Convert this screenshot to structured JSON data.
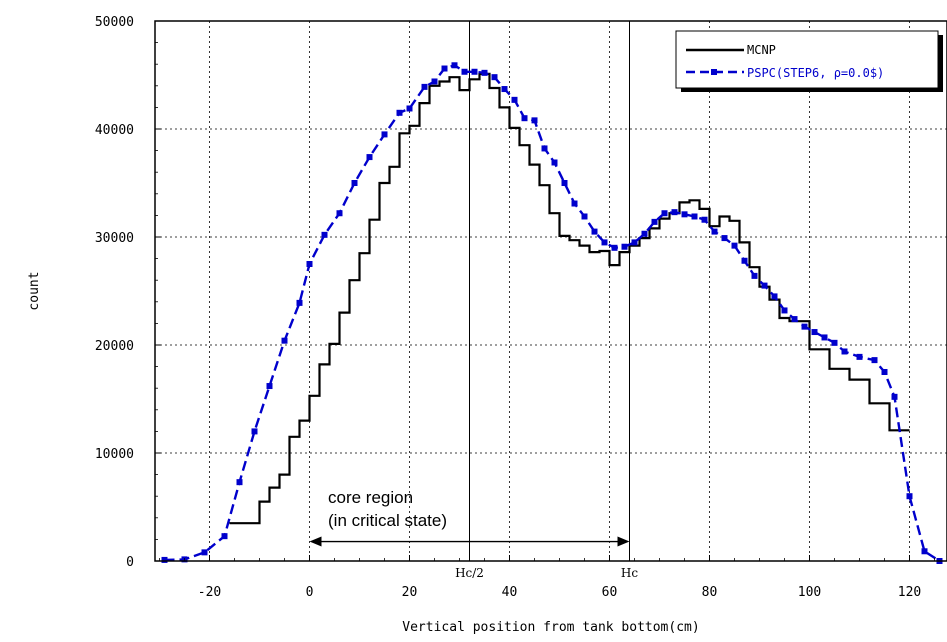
{
  "chart_data": {
    "type": "line",
    "xlabel": "Vertical position from tank bottom(cm)",
    "ylabel": "count",
    "xlim": [
      -30,
      126
    ],
    "ylim": [
      0,
      50000
    ],
    "xticks": [
      -20,
      0,
      20,
      40,
      60,
      80,
      100,
      120
    ],
    "yticks": [
      0,
      10000,
      20000,
      30000,
      40000,
      50000
    ],
    "tick_labels_x": [
      "-20",
      "0",
      "20",
      "40",
      "60",
      "80",
      "100",
      "120"
    ],
    "tick_labels_y": [
      "0",
      "10000",
      "20000",
      "30000",
      "40000",
      "50000"
    ],
    "grid": true,
    "legend_position": "top-right",
    "series": [
      {
        "name": "MCNP",
        "style": "step",
        "color": "#000000",
        "x": [
          -16,
          -10,
          -8,
          -6,
          -4,
          -2,
          0,
          2,
          4,
          6,
          8,
          10,
          12,
          14,
          16,
          18,
          20,
          22,
          24,
          26,
          28,
          30,
          32,
          34,
          36,
          38,
          40,
          42,
          44,
          46,
          48,
          50,
          52,
          54,
          56,
          58,
          60,
          62,
          64,
          66,
          68,
          70,
          72,
          74,
          76,
          78,
          80,
          82,
          84,
          86,
          88,
          90,
          92,
          94,
          96,
          100,
          104,
          108,
          112,
          116,
          120
        ],
        "y": [
          3500,
          5500,
          6800,
          8000,
          11500,
          13000,
          15300,
          18200,
          20100,
          23000,
          26000,
          28500,
          31600,
          35000,
          36500,
          39600,
          40300,
          42400,
          44000,
          44400,
          44800,
          43600,
          44600,
          45100,
          43800,
          42000,
          40100,
          38500,
          36700,
          34800,
          32200,
          30100,
          29700,
          29200,
          28600,
          28700,
          27400,
          28600,
          29200,
          29900,
          30800,
          31700,
          32200,
          33200,
          33400,
          32600,
          31000,
          31900,
          31500,
          29500,
          27200,
          25400,
          24200,
          22500,
          22200,
          19600,
          17800,
          16800,
          14600,
          12100,
          12100
        ],
        "x_end": 120
      },
      {
        "name": "PSPC(STEP6, ρ=0.0$)",
        "style": "dashed-marker",
        "color": "#0000cc",
        "x": [
          -29,
          -25,
          -21,
          -17,
          -14,
          -11,
          -8,
          -5,
          -2,
          0,
          3,
          6,
          9,
          12,
          15,
          18,
          20,
          23,
          25,
          27,
          29,
          31,
          33,
          35,
          37,
          39,
          41,
          43,
          45,
          47,
          49,
          51,
          53,
          55,
          57,
          59,
          61,
          63,
          65,
          67,
          69,
          71,
          73,
          75,
          77,
          79,
          81,
          83,
          85,
          87,
          89,
          91,
          93,
          95,
          97,
          99,
          101,
          103,
          105,
          107,
          110,
          113,
          115,
          117,
          120,
          123,
          126
        ],
        "y": [
          100,
          150,
          800,
          2300,
          7300,
          12000,
          16200,
          20400,
          23900,
          27500,
          30200,
          32200,
          35000,
          37400,
          39500,
          41500,
          41900,
          43900,
          44400,
          45600,
          45900,
          45300,
          45300,
          45200,
          44800,
          43700,
          42700,
          41000,
          40800,
          38200,
          36900,
          35000,
          33100,
          31900,
          30500,
          29500,
          29000,
          29100,
          29500,
          30300,
          31400,
          32200,
          32300,
          32100,
          31900,
          31600,
          30500,
          29900,
          29200,
          27800,
          26400,
          25500,
          24500,
          23200,
          22400,
          21700,
          21200,
          20700,
          20200,
          19400,
          18900,
          18600,
          17500,
          15200,
          6000,
          900,
          0
        ]
      }
    ],
    "reference_lines": [
      {
        "label": "Hc/2",
        "x": 32
      },
      {
        "label": "Hc",
        "x": 64
      }
    ],
    "annotations": {
      "core_line1": "core region",
      "core_line2": "(in critical state)",
      "arrow_from_x": 0,
      "arrow_to_x": 64,
      "arrow_y": 1800
    }
  }
}
